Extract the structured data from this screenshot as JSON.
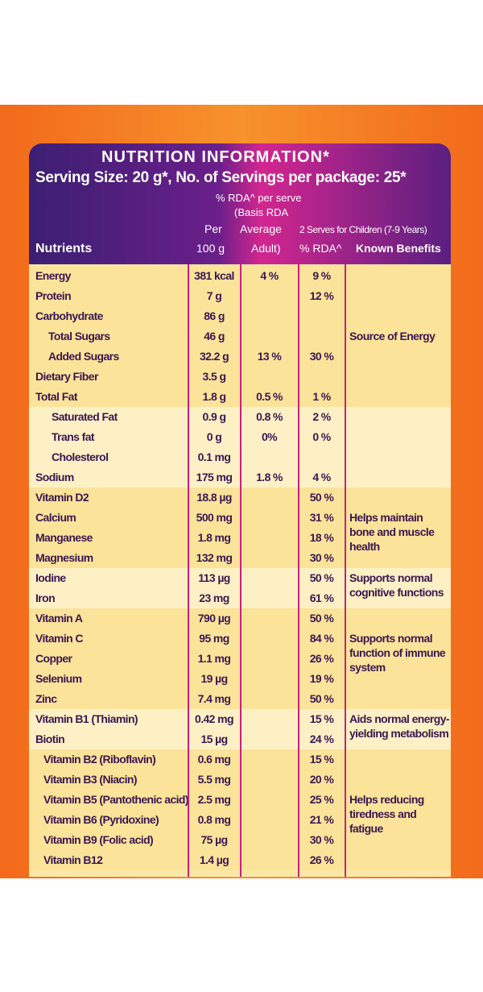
{
  "header": {
    "title": "NUTRITION INFORMATION*",
    "serving": "Serving Size: 20 g*, No. of Servings per package: 25*",
    "rda_note": "% RDA^ per serve",
    "basis": "(Basis RDA",
    "per": "Per",
    "per_unit": "100 g",
    "average": "Average",
    "adult": "Adult)",
    "children": "2 Serves for Children (7-9 Years)",
    "children_rda": "% RDA^",
    "benefits": "Known Benefits",
    "nutrients": "Nutrients"
  },
  "table": {
    "rows": [
      {
        "name": "Energy",
        "per_100g": "381 kcal",
        "average_adult": "4 %",
        "children_rda": "9 %"
      },
      {
        "name": "Protein",
        "per_100g": "7 g",
        "children_rda": "12 %"
      },
      {
        "name": "Carbohydrate",
        "per_100g": "86 g"
      },
      {
        "name": "Total Sugars",
        "per_100g": "46 g",
        "benefit": "Source of Energy"
      },
      {
        "name": "Added Sugars",
        "per_100g": "32.2 g",
        "average_adult": "13 %",
        "children_rda": "30 %"
      },
      {
        "name": "Dietary Fiber",
        "per_100g": "3.5 g"
      },
      {
        "name": "Total Fat",
        "per_100g": "1.8 g",
        "average_adult": "0.5 %",
        "children_rda": "1 %"
      },
      {
        "name": "Saturated Fat",
        "per_100g": "0.9 g",
        "average_adult": "0.8 %",
        "children_rda": "2 %"
      },
      {
        "name": "Trans fat",
        "per_100g": "0 g",
        "average_adult": "0%",
        "children_rda": "0 %"
      },
      {
        "name": "Cholesterol",
        "per_100g": "0.1 mg"
      },
      {
        "name": "Sodium",
        "per_100g": "175 mg",
        "average_adult": "1.8 %",
        "children_rda": "4 %"
      },
      {
        "name": "Vitamin D2",
        "per_100g": "18.8 µg",
        "children_rda": "50 %"
      },
      {
        "name": "Calcium",
        "per_100g": "500 mg",
        "children_rda": "31 %",
        "benefit": "Helps maintain bone and muscle health"
      },
      {
        "name": "Manganese",
        "per_100g": "1.8 mg",
        "children_rda": "18 %"
      },
      {
        "name": "Magnesium",
        "per_100g": "132 mg",
        "children_rda": "30 %"
      },
      {
        "name": "Iodine",
        "per_100g": "113 µg",
        "children_rda": "50 %",
        "benefit": "Supports normal cognitive functions"
      },
      {
        "name": "Iron",
        "per_100g": "23 mg",
        "children_rda": "61 %"
      },
      {
        "name": "Vitamin A",
        "per_100g": "790 µg",
        "children_rda": "50 %"
      },
      {
        "name": "Vitamin C",
        "per_100g": "95 mg",
        "children_rda": "84 %",
        "benefit": "Supports normal function of immune system"
      },
      {
        "name": "Copper",
        "per_100g": "1.1 mg",
        "children_rda": "26 %"
      },
      {
        "name": "Selenium",
        "per_100g": "19 µg",
        "children_rda": "19 %"
      },
      {
        "name": "Zinc",
        "per_100g": "7.4 mg",
        "children_rda": "50 %"
      },
      {
        "name": "Vitamin B1 (Thiamin)",
        "per_100g": "0.42 mg",
        "children_rda": "15 %",
        "benefit": "Aids normal energy-yielding metabolism"
      },
      {
        "name": "Biotin",
        "per_100g": "15 µg",
        "children_rda": "24 %"
      },
      {
        "name": "Vitamin B2 (Riboflavin)",
        "per_100g": "0.6 mg",
        "children_rda": "15 %"
      },
      {
        "name": "Vitamin B3 (Niacin)",
        "per_100g": "5.5 mg",
        "children_rda": "20 %"
      },
      {
        "name": "Vitamin B5 (Pantothenic acid)",
        "per_100g": "2.5 mg",
        "children_rda": "25 %",
        "benefit": "Helps reducing tiredness and fatigue"
      },
      {
        "name": "Vitamin B6 (Pyridoxine)",
        "per_100g": "0.8 mg",
        "children_rda": "21 %"
      },
      {
        "name": "Vitamin B9 (Folic acid)",
        "per_100g": "75 µg",
        "children_rda": "30 %"
      },
      {
        "name": "Vitamin B12",
        "per_100g": "1.4 µg",
        "children_rda": "26 %"
      }
    ]
  }
}
